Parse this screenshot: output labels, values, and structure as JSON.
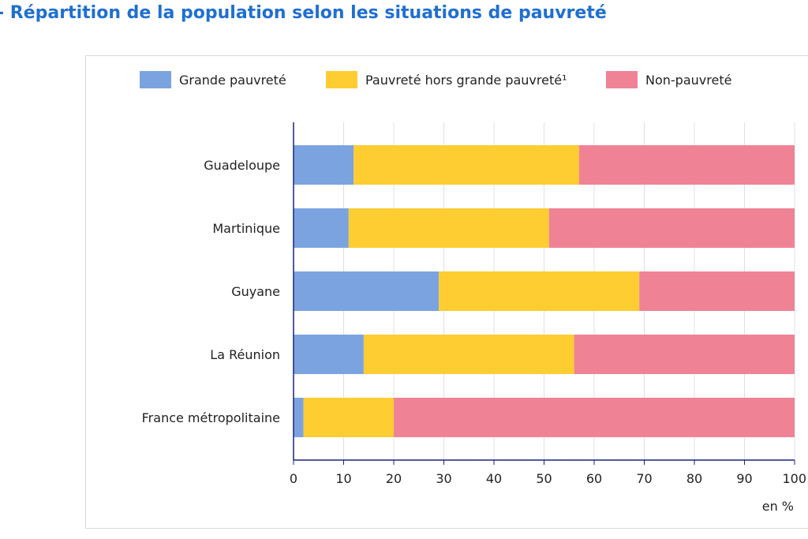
{
  "title": "- Répartition de la population selon les situations de pauvreté",
  "unit_label": "en %",
  "colors": {
    "grande": "#7ba3e0",
    "hors_grande": "#fdcd32",
    "non": "#f08296",
    "axis": "#1a237e",
    "grid": "#e0e0e0"
  },
  "chart_data": {
    "type": "bar",
    "orientation": "horizontal",
    "stacked": true,
    "categories": [
      "Guadeloupe",
      "Martinique",
      "Guyane",
      "La Réunion",
      "France métropolitaine"
    ],
    "series": [
      {
        "name": "Grande pauvreté",
        "values": [
          12,
          11,
          29,
          14,
          2
        ]
      },
      {
        "name": "Pauvreté hors grande pauvreté¹",
        "values": [
          45,
          40,
          40,
          42,
          18
        ]
      },
      {
        "name": "Non-pauvreté",
        "values": [
          43,
          49,
          31,
          44,
          80
        ]
      }
    ],
    "xlabel": "en %",
    "ylabel": "",
    "xlim": [
      0,
      100
    ],
    "xticks": [
      0,
      10,
      20,
      30,
      40,
      50,
      60,
      70,
      80,
      90,
      100
    ],
    "grid": "vertical",
    "legend_position": "top"
  }
}
